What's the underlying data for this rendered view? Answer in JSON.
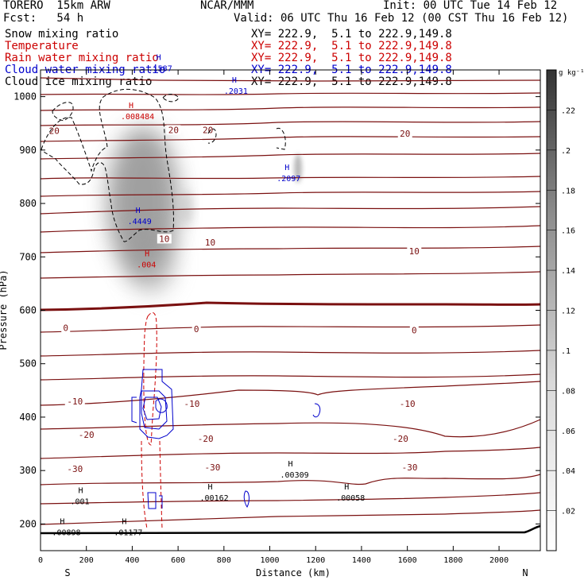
{
  "header": {
    "model": "TORERO  15km ARW",
    "org": "NCAR/MMM",
    "init": "Init: 00 UTC Tue 14 Feb 12",
    "fcst": "Fcst:   54 h",
    "valid": "Valid: 06 UTC Thu 16 Feb 12 (00 CST Thu 16 Feb 12)"
  },
  "fields": [
    {
      "name": "Snow mixing ratio",
      "xy": "XY= 222.9,  5.1 to 222.9,149.8",
      "color": "#000000"
    },
    {
      "name": "Temperature",
      "xy": "XY= 222.9,  5.1 to 222.9,149.8",
      "color": "#cc0000"
    },
    {
      "name": "Rain water mixing ratio",
      "xy": "XY= 222.9,  5.1 to 222.9,149.8",
      "color": "#cc0000"
    },
    {
      "name": "Cloud water mixing ratio",
      "xy": "XY= 222.9,  5.1 to 222.9,149.8",
      "color": "#0000cc"
    },
    {
      "name": "Cloud ice mixing ratio",
      "xy": "XY= 222.9,  5.1 to 222.9,149.8",
      "color": "#000000"
    }
  ],
  "chart_data": {
    "type": "contour-cross-section",
    "xlabel": "Distance (km)",
    "ylabel": "Pressure (hPa)",
    "xlim": [
      0,
      2180
    ],
    "ylim": [
      1050,
      150
    ],
    "x_ticks": [
      0,
      200,
      400,
      600,
      800,
      1000,
      1200,
      1400,
      1600,
      1800,
      2000
    ],
    "y_ticks": [
      200,
      300,
      400,
      500,
      600,
      700,
      800,
      900,
      1000
    ],
    "x_end_labels": {
      "left": "S",
      "right": "N"
    },
    "colorbar": {
      "unit": "g kg⁻¹",
      "ticks": [
        ".02",
        ".04",
        ".06",
        ".08",
        ".1",
        ".12",
        ".14",
        ".16",
        ".18",
        ".2",
        ".22"
      ]
    },
    "isotherm_labels": [
      {
        "x": 150,
        "p": 303,
        "text": "-30"
      },
      {
        "x": 750,
        "p": 306,
        "text": "-30"
      },
      {
        "x": 1610,
        "p": 306,
        "text": "-30"
      },
      {
        "x": 200,
        "p": 367,
        "text": "-20"
      },
      {
        "x": 720,
        "p": 360,
        "text": "-20"
      },
      {
        "x": 1570,
        "p": 360,
        "text": "-20"
      },
      {
        "x": 150,
        "p": 430,
        "text": "-10"
      },
      {
        "x": 660,
        "p": 425,
        "text": "-10"
      },
      {
        "x": 1600,
        "p": 425,
        "text": "-10"
      },
      {
        "x": 110,
        "p": 567,
        "text": "0"
      },
      {
        "x": 680,
        "p": 565,
        "text": "0"
      },
      {
        "x": 1630,
        "p": 563,
        "text": "0"
      },
      {
        "x": 540,
        "p": 734,
        "text": "10"
      },
      {
        "x": 740,
        "p": 727,
        "text": "10"
      },
      {
        "x": 1630,
        "p": 711,
        "text": "10"
      },
      {
        "x": 60,
        "p": 936,
        "text": "20"
      },
      {
        "x": 580,
        "p": 938,
        "text": "20"
      },
      {
        "x": 730,
        "p": 938,
        "text": "20"
      },
      {
        "x": 1590,
        "p": 931,
        "text": "20"
      }
    ],
    "maxima": [
      {
        "x": 50,
        "p": 185,
        "text": ".00898",
        "color": "#000000"
      },
      {
        "x": 320,
        "p": 185,
        "text": ".01177",
        "color": "#000000"
      },
      {
        "x": 130,
        "p": 243,
        "text": ".001",
        "color": "#000000"
      },
      {
        "x": 695,
        "p": 250,
        "text": ".00162",
        "color": "#000000"
      },
      {
        "x": 1045,
        "p": 293,
        "text": ".00309",
        "color": "#000000"
      },
      {
        "x": 1290,
        "p": 250,
        "text": ".00058",
        "color": "#000000"
      },
      {
        "x": 420,
        "p": 686,
        "text": ".004",
        "color": "#cc0000"
      },
      {
        "x": 380,
        "p": 767,
        "text": ".4449",
        "color": "#0000cc"
      },
      {
        "x": 1030,
        "p": 848,
        "text": ".2097",
        "color": "#0000cc"
      },
      {
        "x": 350,
        "p": 964,
        "text": ".008484",
        "color": "#cc0000"
      },
      {
        "x": 800,
        "p": 1011,
        "text": ".2031",
        "color": "#0000cc"
      },
      {
        "x": 470,
        "p": 1054,
        "text": ".1587",
        "color": "#0000cc"
      }
    ]
  }
}
